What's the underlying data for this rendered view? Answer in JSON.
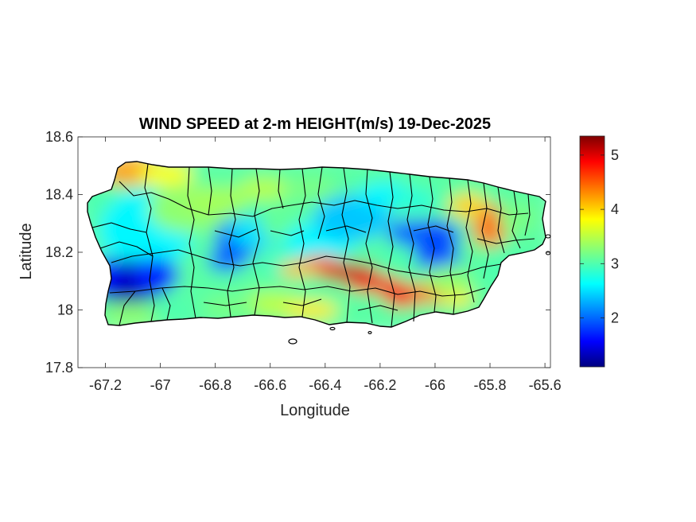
{
  "chart_data": {
    "type": "heatmap",
    "title": "WIND SPEED at 2-m HEIGHT(m/s) 19-Dec-2025",
    "xlabel": "Longitude",
    "ylabel": "Latitude",
    "xlim": [
      -67.3,
      -65.58
    ],
    "ylim": [
      17.8,
      18.6
    ],
    "x_ticks": [
      -67.2,
      -67,
      -66.8,
      -66.6,
      -66.4,
      -66.2,
      -66,
      -65.8,
      -65.6
    ],
    "x_tick_labels": [
      "-67.2",
      "-67",
      "-66.8",
      "-66.6",
      "-66.4",
      "-66.2",
      "-66",
      "-65.8",
      "-65.6"
    ],
    "y_ticks": [
      17.8,
      18,
      18.2,
      18.4,
      18.6
    ],
    "y_tick_labels": [
      "17.8",
      "18",
      "18.2",
      "18.4",
      "18.6"
    ],
    "colorbar": {
      "colormap": "jet",
      "range": [
        1.1,
        5.35
      ],
      "ticks": [
        2,
        3,
        4,
        5
      ],
      "tick_labels": [
        "2",
        "3",
        "4",
        "5"
      ]
    },
    "grid": false,
    "features": [
      {
        "name": "low wind core west",
        "lon": -67.12,
        "lat": 18.1,
        "value": 1.2
      },
      {
        "name": "low wind east-central",
        "lon": -66.0,
        "lat": 18.23,
        "value": 1.6
      },
      {
        "name": "low wind central",
        "lon": -66.72,
        "lat": 18.22,
        "value": 2.0
      },
      {
        "name": "high wind ridge",
        "lon": -66.3,
        "lat": 18.12,
        "value": 5.2
      },
      {
        "name": "high wind southeast",
        "lon": -66.12,
        "lat": 18.05,
        "value": 5.0
      },
      {
        "name": "northwest corner",
        "lon": -67.1,
        "lat": 18.49,
        "value": 4.2
      },
      {
        "name": "east coast",
        "lon": -65.8,
        "lat": 18.27,
        "value": 4.6
      }
    ]
  }
}
